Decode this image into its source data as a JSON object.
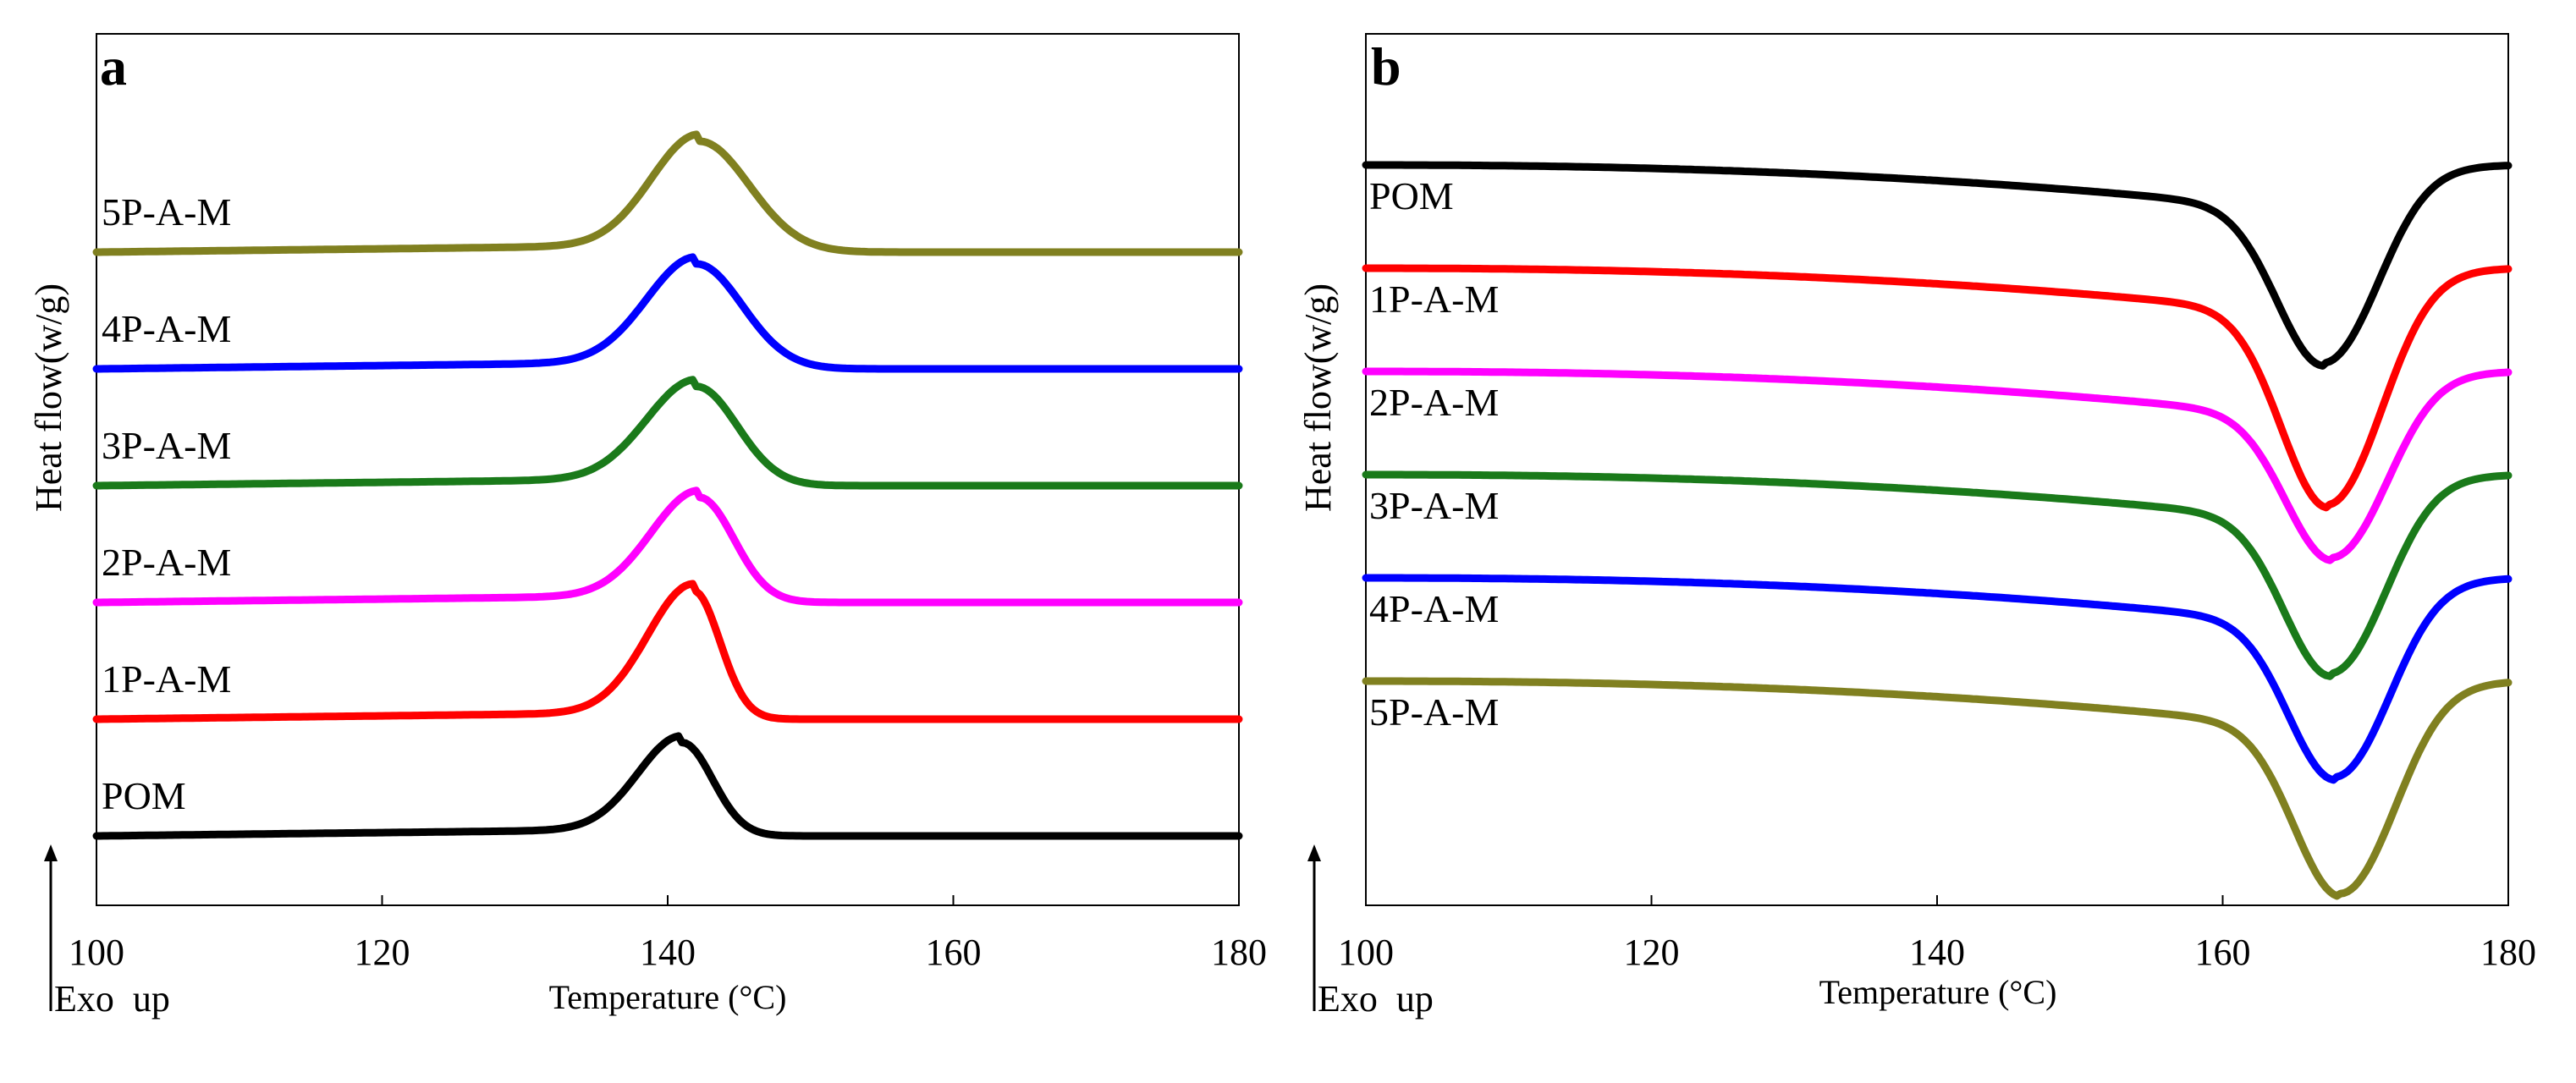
{
  "chart_data": [
    {
      "type": "line",
      "panel": "a",
      "title": "",
      "xlabel": "Temperature (°C)",
      "ylabel": "Heat flow(w/g)",
      "direction_note": "Exo  up",
      "xlim": [
        100,
        180
      ],
      "xticks": [
        100,
        120,
        140,
        160,
        180
      ],
      "grid": false,
      "curve_model": "exothermic crystallization peak (offset traces)",
      "series": [
        {
          "name": "5P-A-M",
          "color": "#808020",
          "baseline": 5.0,
          "peak_temp": 142.2,
          "peak_height": 0.95,
          "onset": 133.5,
          "end": 152.0
        },
        {
          "name": "4P-A-M",
          "color": "#0000ff",
          "baseline": 4.0,
          "peak_temp": 142.0,
          "peak_height": 0.9,
          "onset": 133.0,
          "end": 151.0
        },
        {
          "name": "3P-A-M",
          "color": "#1a7a1a",
          "baseline": 3.0,
          "peak_temp": 142.0,
          "peak_height": 0.85,
          "onset": 133.0,
          "end": 150.0
        },
        {
          "name": "2P-A-M",
          "color": "#ff00ff",
          "baseline": 2.0,
          "peak_temp": 142.2,
          "peak_height": 0.9,
          "onset": 133.5,
          "end": 149.0
        },
        {
          "name": "1P-A-M",
          "color": "#ff0000",
          "baseline": 1.0,
          "peak_temp": 141.8,
          "peak_height": 1.1,
          "onset": 133.5,
          "end": 147.0
        },
        {
          "name": "POM",
          "color": "#000000",
          "baseline": 0.0,
          "peak_temp": 141.0,
          "peak_height": 0.8,
          "onset": 133.0,
          "end": 147.0
        }
      ]
    },
    {
      "type": "line",
      "panel": "b",
      "title": "",
      "xlabel": "Temperature (°C)",
      "ylabel": "Heat flow(w/g)",
      "direction_note": "Exo  up",
      "xlim": [
        100,
        180
      ],
      "xticks": [
        100,
        120,
        140,
        160,
        180
      ],
      "grid": false,
      "curve_model": "endothermic melting peak (offset traces)",
      "series": [
        {
          "name": "POM",
          "color": "#000000",
          "baseline": 5.0,
          "peak_temp": 167.0,
          "peak_depth": 1.2,
          "end_level": 5.0
        },
        {
          "name": "1P-A-M",
          "color": "#ff0000",
          "baseline": 4.0,
          "peak_temp": 167.3,
          "peak_depth": 1.5,
          "end_level": 4.0
        },
        {
          "name": "2P-A-M",
          "color": "#ff00ff",
          "baseline": 3.0,
          "peak_temp": 167.6,
          "peak_depth": 1.1,
          "end_level": 3.0
        },
        {
          "name": "3P-A-M",
          "color": "#1a7a1a",
          "baseline": 2.0,
          "peak_temp": 167.5,
          "peak_depth": 1.2,
          "end_level": 2.0
        },
        {
          "name": "4P-A-M",
          "color": "#0000ff",
          "baseline": 1.0,
          "peak_temp": 167.8,
          "peak_depth": 1.2,
          "end_level": 1.0
        },
        {
          "name": "5P-A-M",
          "color": "#808020",
          "baseline": 0.0,
          "peak_temp": 168.2,
          "peak_depth": 1.3,
          "end_level": 0.0
        }
      ]
    }
  ]
}
